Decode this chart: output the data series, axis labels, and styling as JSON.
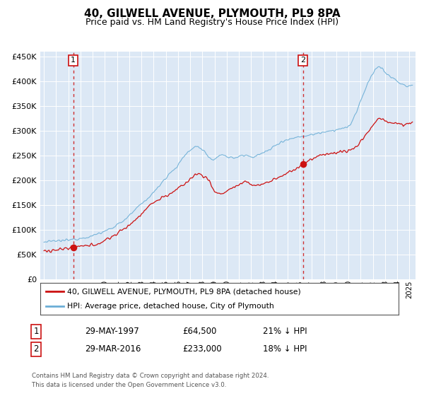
{
  "title": "40, GILWELL AVENUE, PLYMOUTH, PL9 8PA",
  "subtitle": "Price paid vs. HM Land Registry's House Price Index (HPI)",
  "title_fontsize": 11,
  "subtitle_fontsize": 9,
  "bg_color": "#dce8f5",
  "plot_bg_color": "#dce8f5",
  "hpi_color": "#6baed6",
  "price_color": "#cc1111",
  "marker1_date": 1997.41,
  "marker1_price": 64500,
  "marker2_date": 2016.25,
  "marker2_price": 233000,
  "vline1_date": 1997.41,
  "vline2_date": 2016.25,
  "ylim": [
    0,
    460000
  ],
  "xlim_start": 1994.7,
  "xlim_end": 2025.5,
  "legend_entry1": "40, GILWELL AVENUE, PLYMOUTH, PL9 8PA (detached house)",
  "legend_entry2": "HPI: Average price, detached house, City of Plymouth",
  "table_row1": [
    "1",
    "29-MAY-1997",
    "£64,500",
    "21% ↓ HPI"
  ],
  "table_row2": [
    "2",
    "29-MAR-2016",
    "£233,000",
    "18% ↓ HPI"
  ],
  "footnote1": "Contains HM Land Registry data © Crown copyright and database right 2024.",
  "footnote2": "This data is licensed under the Open Government Licence v3.0."
}
